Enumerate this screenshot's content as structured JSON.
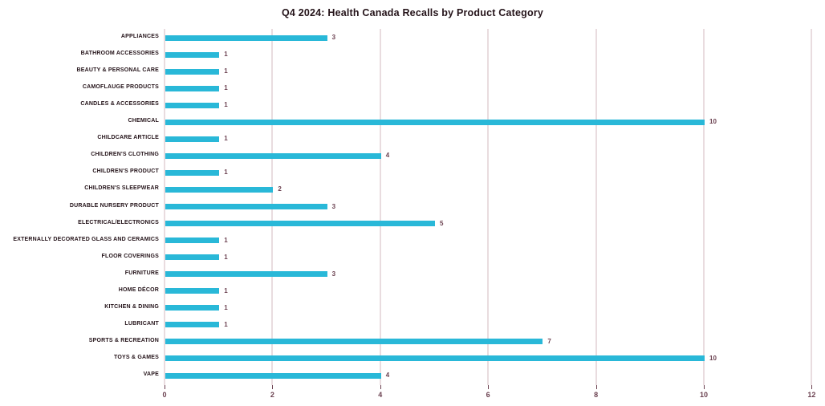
{
  "chart_data": {
    "type": "bar",
    "orientation": "horizontal",
    "title": "Q4 2024: Health Canada Recalls by Product Category",
    "categories": [
      "APPLIANCES",
      "BATHROOM ACCESSORIES",
      "BEAUTY & PERSONAL CARE",
      "CAMOFLAUGE PRODUCTS",
      "CANDLES & ACCESSORIES",
      "CHEMICAL",
      "CHILDCARE ARTICLE",
      "CHILDREN'S CLOTHING",
      "CHILDREN'S PRODUCT",
      "CHILDREN'S SLEEPWEAR",
      "DURABLE NURSERY PRODUCT",
      "ELECTRICAL/ELECTRONICS",
      "EXTERNALLY DECORATED GLASS AND CERAMICS",
      "FLOOR COVERINGS",
      "FURNITURE",
      "HOME DÉCOR",
      "KITCHEN & DINING",
      "LUBRICANT",
      "SPORTS & RECREATION",
      "TOYS & GAMES",
      "VAPE"
    ],
    "values": [
      3,
      1,
      1,
      1,
      1,
      10,
      1,
      4,
      1,
      2,
      3,
      5,
      1,
      1,
      3,
      1,
      1,
      1,
      7,
      10,
      4
    ],
    "xlabel": "",
    "ylabel": "",
    "xlim": [
      0,
      12
    ],
    "xticks": [
      0,
      2,
      4,
      6,
      8,
      10,
      12
    ],
    "grid": "vertical-only",
    "legend": "none",
    "data_labels": true,
    "colors": {
      "bar": "#29b8d8",
      "gridline": "#e9dcdf",
      "title_text": "#241319",
      "category_text": "#241319",
      "value_text": "#6b4150",
      "tick_text": "#6b4150",
      "tick_mark": "#6b4150",
      "background": "#ffffff"
    }
  }
}
